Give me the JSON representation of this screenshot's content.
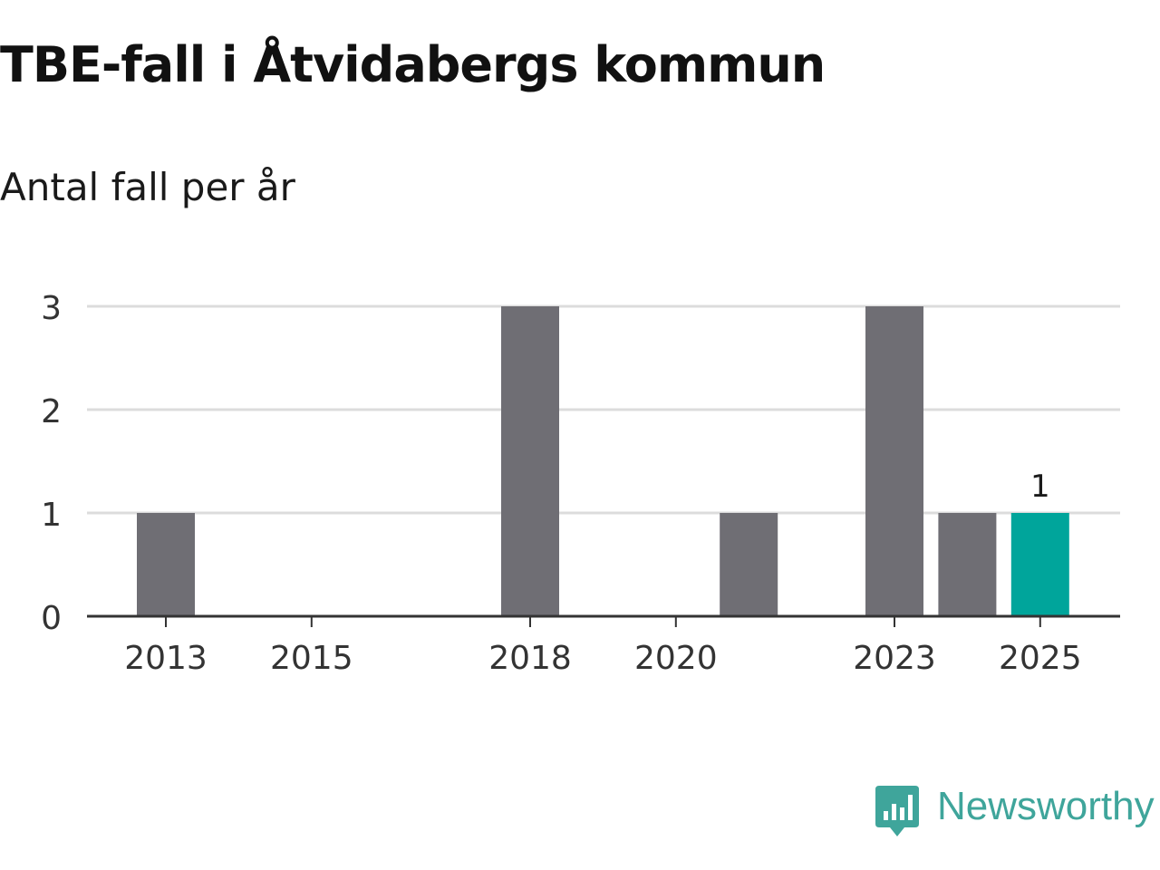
{
  "chart_data": {
    "type": "bar",
    "title": "TBE-fall i Åtvidabergs kommun",
    "subtitle": "Antal fall per år",
    "xlabel": "",
    "ylabel": "",
    "x": [
      2013,
      2014,
      2015,
      2016,
      2017,
      2018,
      2019,
      2020,
      2021,
      2022,
      2023,
      2024,
      2025
    ],
    "values": [
      1,
      0,
      0,
      0,
      0,
      3,
      0,
      0,
      1,
      0,
      3,
      1,
      1
    ],
    "x_ticks": [
      2013,
      2015,
      2018,
      2020,
      2023,
      2025
    ],
    "y_ticks": [
      0,
      1,
      2,
      3
    ],
    "ylim": [
      0,
      3
    ],
    "highlight": {
      "x": 2025,
      "label": "1"
    },
    "grid": true,
    "colors": {
      "bar": "#6f6e74",
      "highlight": "#00a59b",
      "grid": "#dcdcdc",
      "axis": "#333333"
    }
  },
  "logo": {
    "name": "Newsworthy",
    "color": "#3fa59b"
  }
}
